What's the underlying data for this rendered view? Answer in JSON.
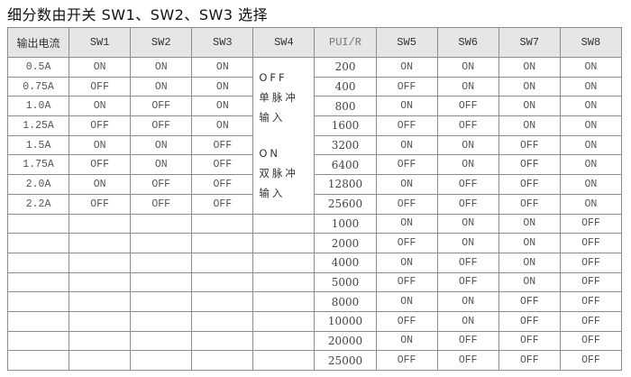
{
  "title": "细分数由开关 SW1、SW2、SW3 选择",
  "headers": [
    "输出电流",
    "SW1",
    "SW2",
    "SW3",
    "SW4",
    "PUI/R",
    "SW5",
    "SW6",
    "SW7",
    "SW8"
  ],
  "sw4": {
    "off_label": "OFF",
    "off_desc": "单脉冲输入",
    "on_label": "ON",
    "on_desc": "双脉冲输入"
  },
  "current_rows": [
    [
      "0.5A",
      "ON",
      "ON",
      "ON"
    ],
    [
      "0.75A",
      "OFF",
      "ON",
      "ON"
    ],
    [
      "1.0A",
      "ON",
      "OFF",
      "ON"
    ],
    [
      "1.25A",
      "OFF",
      "OFF",
      "ON"
    ],
    [
      "1.5A",
      "ON",
      "ON",
      "OFF"
    ],
    [
      "1.75A",
      "OFF",
      "ON",
      "OFF"
    ],
    [
      "2.0A",
      "ON",
      "OFF",
      "OFF"
    ],
    [
      "2.2A",
      "OFF",
      "OFF",
      "OFF"
    ]
  ],
  "pulse_rows": [
    [
      "200",
      "ON",
      "ON",
      "ON",
      "ON"
    ],
    [
      "400",
      "OFF",
      "ON",
      "ON",
      "ON"
    ],
    [
      "800",
      "ON",
      "OFF",
      "ON",
      "ON"
    ],
    [
      "1600",
      "OFF",
      "OFF",
      "ON",
      "ON"
    ],
    [
      "3200",
      "ON",
      "ON",
      "OFF",
      "ON"
    ],
    [
      "6400",
      "OFF",
      "ON",
      "OFF",
      "ON"
    ],
    [
      "12800",
      "ON",
      "OFF",
      "OFF",
      "ON"
    ],
    [
      "25600",
      "OFF",
      "OFF",
      "OFF",
      "ON"
    ],
    [
      "1000",
      "ON",
      "ON",
      "ON",
      "OFF"
    ],
    [
      "2000",
      "OFF",
      "ON",
      "ON",
      "OFF"
    ],
    [
      "4000",
      "ON",
      "OFF",
      "ON",
      "OFF"
    ],
    [
      "5000",
      "OFF",
      "OFF",
      "ON",
      "OFF"
    ],
    [
      "8000",
      "ON",
      "ON",
      "OFF",
      "OFF"
    ],
    [
      "10000",
      "OFF",
      "ON",
      "OFF",
      "OFF"
    ],
    [
      "20000",
      "ON",
      "OFF",
      "OFF",
      "OFF"
    ],
    [
      "25000",
      "OFF",
      "OFF",
      "OFF",
      "OFF"
    ]
  ]
}
